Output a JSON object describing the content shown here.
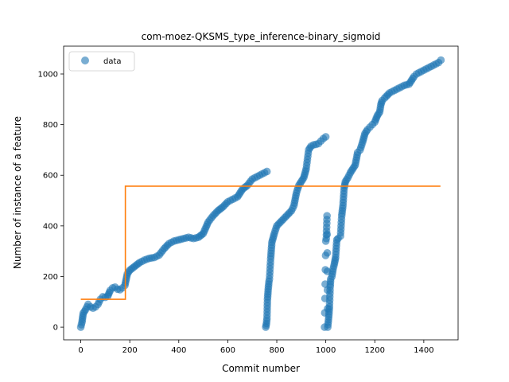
{
  "chart_data": {
    "type": "scatter",
    "title": "com-moez-QKSMS_type_inference-binary_sigmoid",
    "xlabel": "Commit number",
    "ylabel": "Number of instance of a feature",
    "xlim": [
      -70,
      1540
    ],
    "ylim": [
      -50,
      1110
    ],
    "xticks": [
      0,
      200,
      400,
      600,
      800,
      1000,
      1200,
      1400
    ],
    "yticks": [
      0,
      200,
      400,
      600,
      800,
      1000
    ],
    "grid": false,
    "legend": {
      "position": "top-left",
      "entries": [
        "data"
      ]
    },
    "colors": {
      "data": "#1f77b4",
      "fit": "#ff7f0e"
    },
    "series": [
      {
        "name": "data",
        "kind": "scatter",
        "segments": [
          {
            "x": [
              0,
              5,
              10,
              20,
              30,
              40,
              50,
              60,
              70,
              80,
              90,
              100,
              110,
              120,
              130,
              140,
              150,
              160,
              170,
              180,
              190,
              200,
              220,
              240,
              260,
              280,
              300,
              320,
              340,
              360,
              380,
              400,
              420,
              440,
              460,
              480,
              500,
              520,
              540,
              560,
              580,
              600,
              620,
              640,
              660,
              680,
              700,
              720,
              740,
              760
            ],
            "y": [
              0,
              20,
              55,
              70,
              90,
              80,
              75,
              80,
              90,
              110,
              120,
              118,
              122,
              145,
              155,
              158,
              150,
              148,
              155,
              165,
              210,
              225,
              240,
              255,
              265,
              272,
              275,
              285,
              310,
              330,
              340,
              345,
              350,
              355,
              350,
              355,
              370,
              415,
              440,
              460,
              475,
              495,
              505,
              515,
              545,
              560,
              585,
              595,
              605,
              615
            ]
          },
          {
            "x": [
              755,
              758,
              760,
              762,
              765,
              768,
              770,
              775,
              780,
              790,
              800,
              820,
              840,
              860,
              870,
              880,
              890,
              900,
              910,
              920,
              930,
              940,
              950,
              960,
              970,
              980,
              990,
              1000
            ],
            "y": [
              0,
              15,
              35,
              110,
              150,
              180,
              190,
              270,
              335,
              370,
              400,
              420,
              440,
              460,
              480,
              530,
              560,
              575,
              590,
              625,
              700,
              715,
              720,
              722,
              725,
              735,
              745,
              752
            ]
          },
          {
            "x": [
              995,
              1000,
              1002,
              1005,
              1008,
              1012,
              1015,
              1018,
              1020,
              1025,
              1030,
              1035,
              1040,
              1045,
              1050,
              1060,
              1065,
              1070,
              1075,
              1080,
              1090,
              1100,
              1110,
              1120,
              1130,
              1140,
              1150,
              1160,
              1170,
              1180,
              1190,
              1200,
              1210,
              1220,
              1225,
              1230,
              1240,
              1260,
              1280,
              1300,
              1320,
              1340,
              1360,
              1370,
              1380,
              1400,
              1420,
              1440,
              1460,
              1470
            ],
            "y": [
              0,
              340,
              350,
              440,
              0,
              40,
              80,
              160,
              190,
              200,
              230,
              250,
              275,
              345,
              350,
              360,
              440,
              480,
              550,
              575,
              590,
              610,
              625,
              640,
              690,
              700,
              730,
              765,
              780,
              790,
              800,
              810,
              835,
              850,
              880,
              895,
              905,
              925,
              935,
              945,
              955,
              960,
              990,
              1000,
              1005,
              1015,
              1025,
              1035,
              1045,
              1055
            ]
          }
        ]
      },
      {
        "name": "",
        "kind": "line",
        "x": [
          0,
          182,
          182,
          1468
        ],
        "y": [
          110,
          110,
          557,
          557
        ]
      }
    ]
  }
}
